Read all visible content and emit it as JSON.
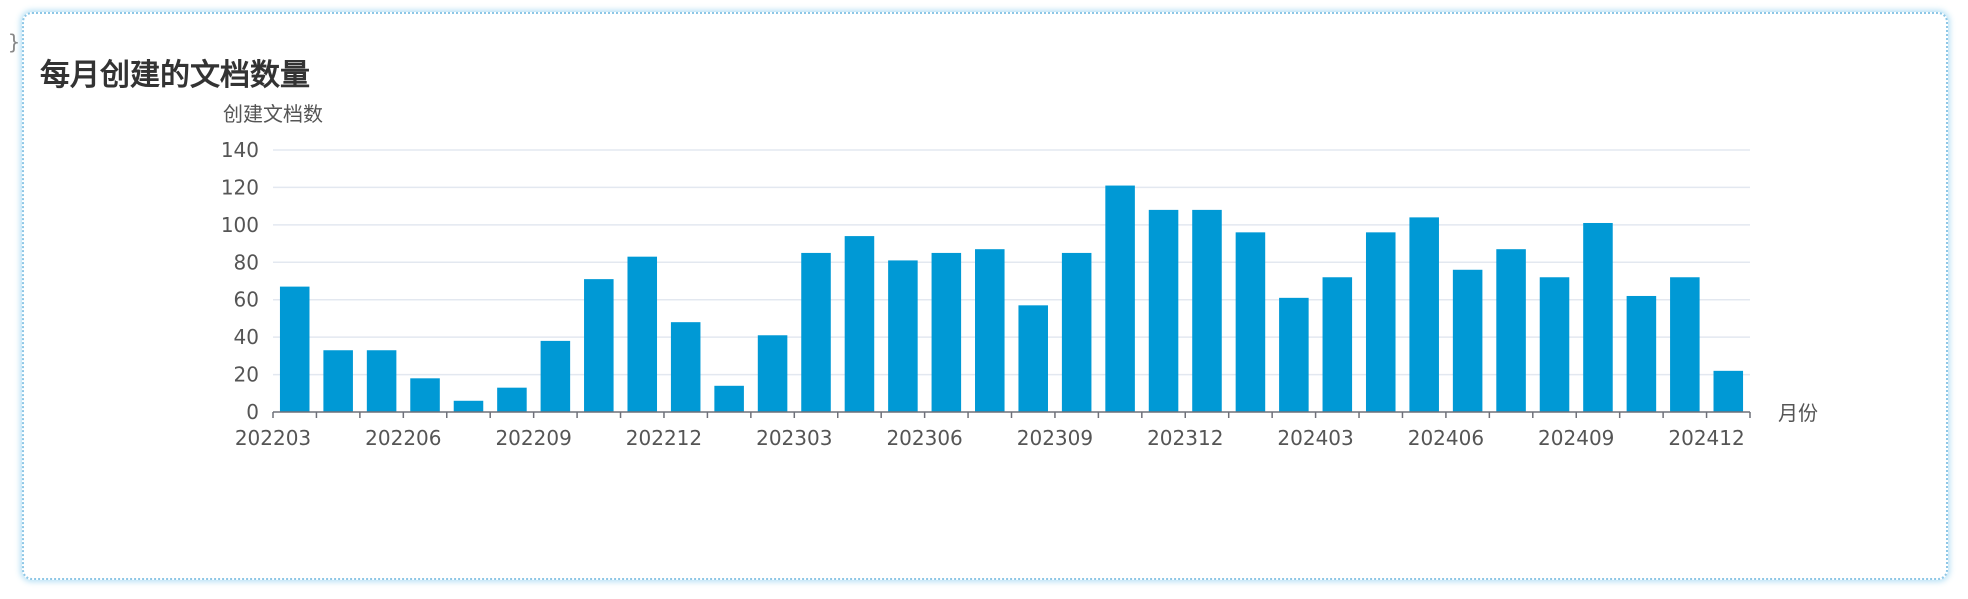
{
  "stray_text": "}",
  "chart_data": {
    "type": "bar",
    "title": "每月创建的文档数量",
    "xlabel": "月份",
    "ylabel": "创建文档数",
    "ylim": [
      0,
      140
    ],
    "yticks": [
      0,
      20,
      40,
      60,
      80,
      100,
      120,
      140
    ],
    "grid": true,
    "legend": "none",
    "bar_color": "#0099d5",
    "categories": [
      "202203",
      "202204",
      "202205",
      "202206",
      "202207",
      "202208",
      "202209",
      "202210",
      "202211",
      "202212",
      "202301",
      "202302",
      "202303",
      "202304",
      "202305",
      "202306",
      "202307",
      "202308",
      "202309",
      "202310",
      "202311",
      "202312",
      "202401",
      "202402",
      "202403",
      "202404",
      "202405",
      "202406",
      "202407",
      "202408",
      "202409",
      "202410",
      "202411",
      "202412"
    ],
    "xtick_labels": [
      "202203",
      "202206",
      "202209",
      "202212",
      "202303",
      "202306",
      "202309",
      "202312",
      "202403",
      "202406",
      "202409",
      "202412"
    ],
    "values": [
      67,
      33,
      33,
      18,
      6,
      13,
      38,
      71,
      83,
      48,
      14,
      41,
      85,
      94,
      81,
      85,
      87,
      57,
      85,
      121,
      108,
      108,
      96,
      61,
      72,
      96,
      104,
      76,
      87,
      72,
      101,
      62,
      72,
      22
    ]
  }
}
